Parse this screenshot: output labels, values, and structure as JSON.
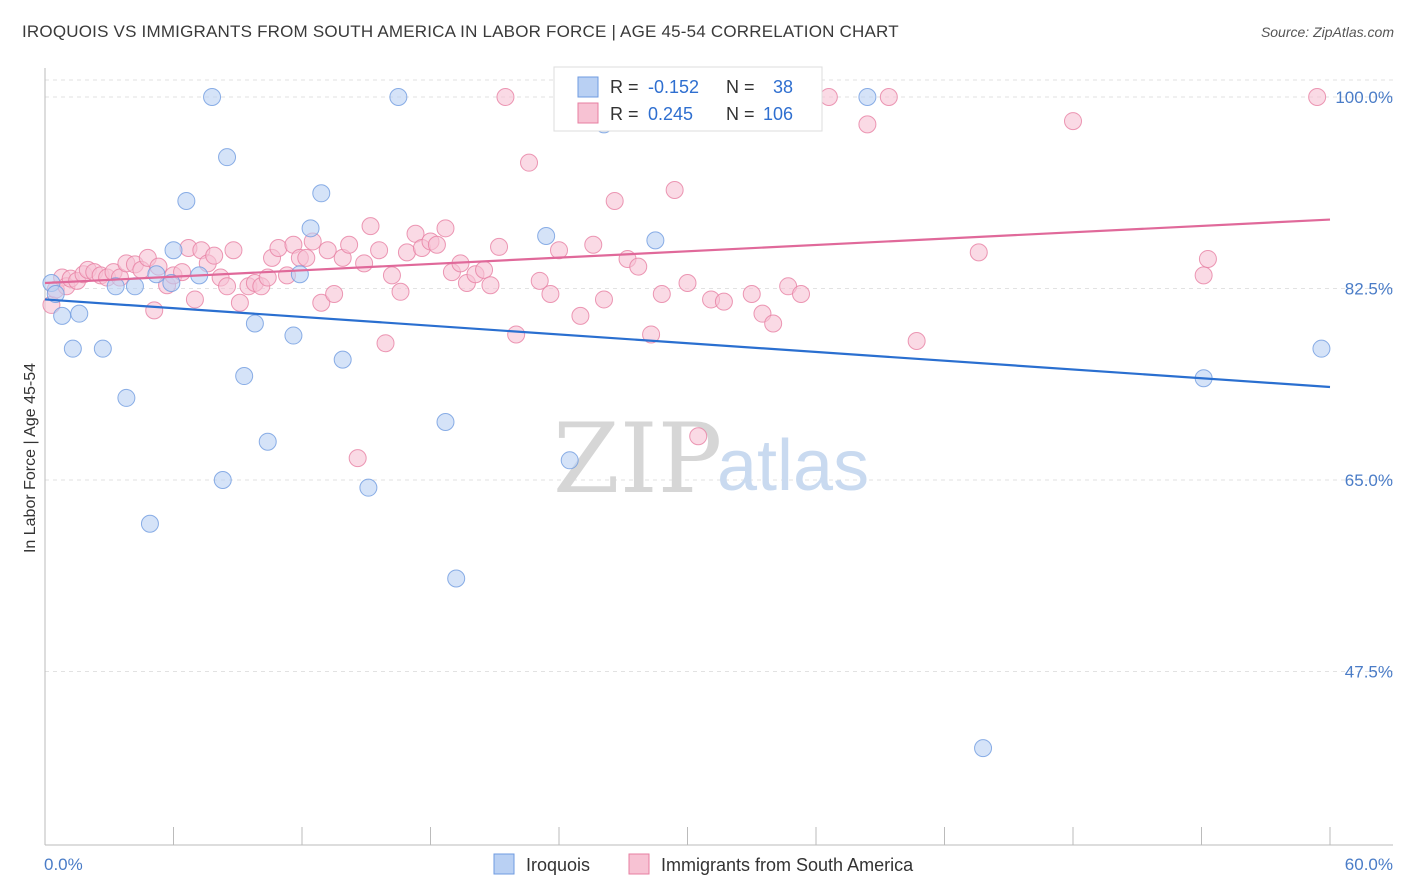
{
  "title": "IROQUOIS VS IMMIGRANTS FROM SOUTH AMERICA IN LABOR FORCE | AGE 45-54 CORRELATION CHART",
  "source": "Source: ZipAtlas.com",
  "chart_data": {
    "type": "scatter",
    "title": "IROQUOIS VS IMMIGRANTS FROM SOUTH AMERICA IN LABOR FORCE | AGE 45-54 CORRELATION CHART",
    "ylabel": "In Labor Force | Age 45-54",
    "xlim": [
      0,
      60
    ],
    "ylim": [
      32,
      103
    ],
    "x_tick_labels": [
      "0.0%",
      "60.0%"
    ],
    "y_ticks": [
      47.5,
      65.0,
      82.5,
      100.0
    ],
    "y_tick_labels": [
      "47.5%",
      "65.0%",
      "82.5%",
      "100.0%"
    ],
    "grid": true,
    "legend_placement": "top-center",
    "watermark": {
      "zip": "ZIP",
      "atlas": "atlas"
    },
    "series": [
      {
        "name": "Iroquois",
        "color": "#6f9be0",
        "fill": "#b9d0f3",
        "R": "-0.152",
        "N": "38",
        "trend": [
          [
            0,
            81.5
          ],
          [
            60,
            73.5
          ]
        ],
        "points": [
          [
            0.3,
            83.0
          ],
          [
            0.5,
            82.0
          ],
          [
            0.8,
            80.0
          ],
          [
            1.3,
            77.0
          ],
          [
            1.6,
            80.2
          ],
          [
            2.7,
            77.0
          ],
          [
            3.3,
            82.7
          ],
          [
            3.8,
            72.5
          ],
          [
            4.2,
            82.7
          ],
          [
            4.9,
            61.0
          ],
          [
            5.2,
            83.8
          ],
          [
            5.9,
            83.0
          ],
          [
            6.0,
            86.0
          ],
          [
            6.6,
            90.5
          ],
          [
            7.2,
            83.7
          ],
          [
            7.8,
            100.0
          ],
          [
            8.3,
            65.0
          ],
          [
            8.5,
            94.5
          ],
          [
            9.3,
            74.5
          ],
          [
            9.8,
            79.3
          ],
          [
            10.4,
            68.5
          ],
          [
            11.6,
            78.2
          ],
          [
            11.9,
            83.8
          ],
          [
            12.4,
            88.0
          ],
          [
            12.9,
            91.2
          ],
          [
            13.9,
            76.0
          ],
          [
            15.1,
            64.3
          ],
          [
            16.5,
            100.0
          ],
          [
            18.7,
            70.3
          ],
          [
            19.2,
            56.0
          ],
          [
            23.4,
            87.3
          ],
          [
            24.5,
            66.8
          ],
          [
            26.1,
            97.5
          ],
          [
            28.5,
            86.9
          ],
          [
            38.4,
            100.0
          ],
          [
            43.8,
            40.5
          ],
          [
            54.1,
            74.3
          ],
          [
            59.6,
            77.0
          ]
        ]
      },
      {
        "name": "Immigrants from South America",
        "color": "#e77fa2",
        "fill": "#f7c2d3",
        "R": "0.245",
        "N": "106",
        "trend": [
          [
            0,
            83.0
          ],
          [
            60,
            88.8
          ]
        ],
        "points": [
          [
            0.3,
            81.0
          ],
          [
            0.5,
            82.4
          ],
          [
            0.8,
            83.5
          ],
          [
            1.0,
            82.7
          ],
          [
            1.2,
            83.4
          ],
          [
            1.5,
            83.2
          ],
          [
            1.8,
            83.8
          ],
          [
            2.0,
            84.2
          ],
          [
            2.3,
            84.0
          ],
          [
            2.6,
            83.7
          ],
          [
            2.9,
            83.5
          ],
          [
            3.2,
            84.0
          ],
          [
            3.5,
            83.5
          ],
          [
            3.8,
            84.8
          ],
          [
            4.2,
            84.7
          ],
          [
            4.5,
            84.2
          ],
          [
            4.8,
            85.3
          ],
          [
            5.1,
            80.5
          ],
          [
            5.3,
            84.5
          ],
          [
            5.7,
            82.8
          ],
          [
            6.0,
            83.7
          ],
          [
            6.4,
            84.0
          ],
          [
            6.7,
            86.2
          ],
          [
            7.0,
            81.5
          ],
          [
            7.3,
            86.0
          ],
          [
            7.6,
            84.8
          ],
          [
            7.9,
            85.5
          ],
          [
            8.2,
            83.5
          ],
          [
            8.5,
            82.7
          ],
          [
            8.8,
            86.0
          ],
          [
            9.1,
            81.2
          ],
          [
            9.5,
            82.7
          ],
          [
            9.8,
            83.0
          ],
          [
            10.1,
            82.7
          ],
          [
            10.4,
            83.5
          ],
          [
            10.6,
            85.3
          ],
          [
            10.9,
            86.2
          ],
          [
            11.3,
            83.7
          ],
          [
            11.6,
            86.5
          ],
          [
            11.9,
            85.3
          ],
          [
            12.2,
            85.3
          ],
          [
            12.5,
            86.8
          ],
          [
            12.9,
            81.2
          ],
          [
            13.2,
            86.0
          ],
          [
            13.5,
            82.0
          ],
          [
            13.9,
            85.3
          ],
          [
            14.2,
            86.5
          ],
          [
            14.6,
            67.0
          ],
          [
            14.9,
            84.8
          ],
          [
            15.2,
            88.2
          ],
          [
            15.6,
            86.0
          ],
          [
            15.9,
            77.5
          ],
          [
            16.2,
            83.7
          ],
          [
            16.6,
            82.2
          ],
          [
            16.9,
            85.8
          ],
          [
            17.3,
            87.5
          ],
          [
            17.6,
            86.2
          ],
          [
            18.0,
            86.8
          ],
          [
            18.3,
            86.5
          ],
          [
            18.7,
            88.0
          ],
          [
            19.0,
            84.0
          ],
          [
            19.4,
            84.8
          ],
          [
            19.7,
            83.0
          ],
          [
            20.1,
            83.8
          ],
          [
            20.5,
            84.2
          ],
          [
            20.8,
            82.8
          ],
          [
            21.2,
            86.3
          ],
          [
            21.5,
            100.0
          ],
          [
            22.0,
            78.3
          ],
          [
            22.6,
            94.0
          ],
          [
            23.1,
            83.2
          ],
          [
            23.6,
            82.0
          ],
          [
            24.0,
            86.0
          ],
          [
            24.5,
            100.0
          ],
          [
            25.0,
            80.0
          ],
          [
            25.6,
            86.5
          ],
          [
            26.1,
            81.5
          ],
          [
            26.6,
            90.5
          ],
          [
            27.2,
            85.2
          ],
          [
            27.7,
            84.5
          ],
          [
            28.3,
            78.3
          ],
          [
            28.8,
            82.0
          ],
          [
            29.4,
            91.5
          ],
          [
            30.0,
            83.0
          ],
          [
            30.5,
            69.0
          ],
          [
            31.1,
            81.5
          ],
          [
            31.7,
            81.3
          ],
          [
            32.3,
            100.0
          ],
          [
            33.0,
            82.0
          ],
          [
            33.5,
            80.2
          ],
          [
            34.0,
            79.3
          ],
          [
            34.7,
            82.7
          ],
          [
            35.3,
            82.0
          ],
          [
            36.6,
            100.0
          ],
          [
            38.4,
            97.5
          ],
          [
            39.4,
            100.0
          ],
          [
            40.7,
            77.7
          ],
          [
            43.6,
            85.8
          ],
          [
            48.0,
            97.8
          ],
          [
            54.1,
            83.7
          ],
          [
            54.3,
            85.2
          ],
          [
            59.4,
            100.0
          ]
        ]
      }
    ]
  },
  "legend": {
    "r_label": "R =",
    "n_label": "N =",
    "entries": [
      {
        "r_value": "-0.152",
        "n_value": "38"
      },
      {
        "r_value": "0.245",
        "n_value": "106"
      }
    ]
  },
  "bottom_legend": [
    "Iroquois",
    "Immigrants from South America"
  ]
}
